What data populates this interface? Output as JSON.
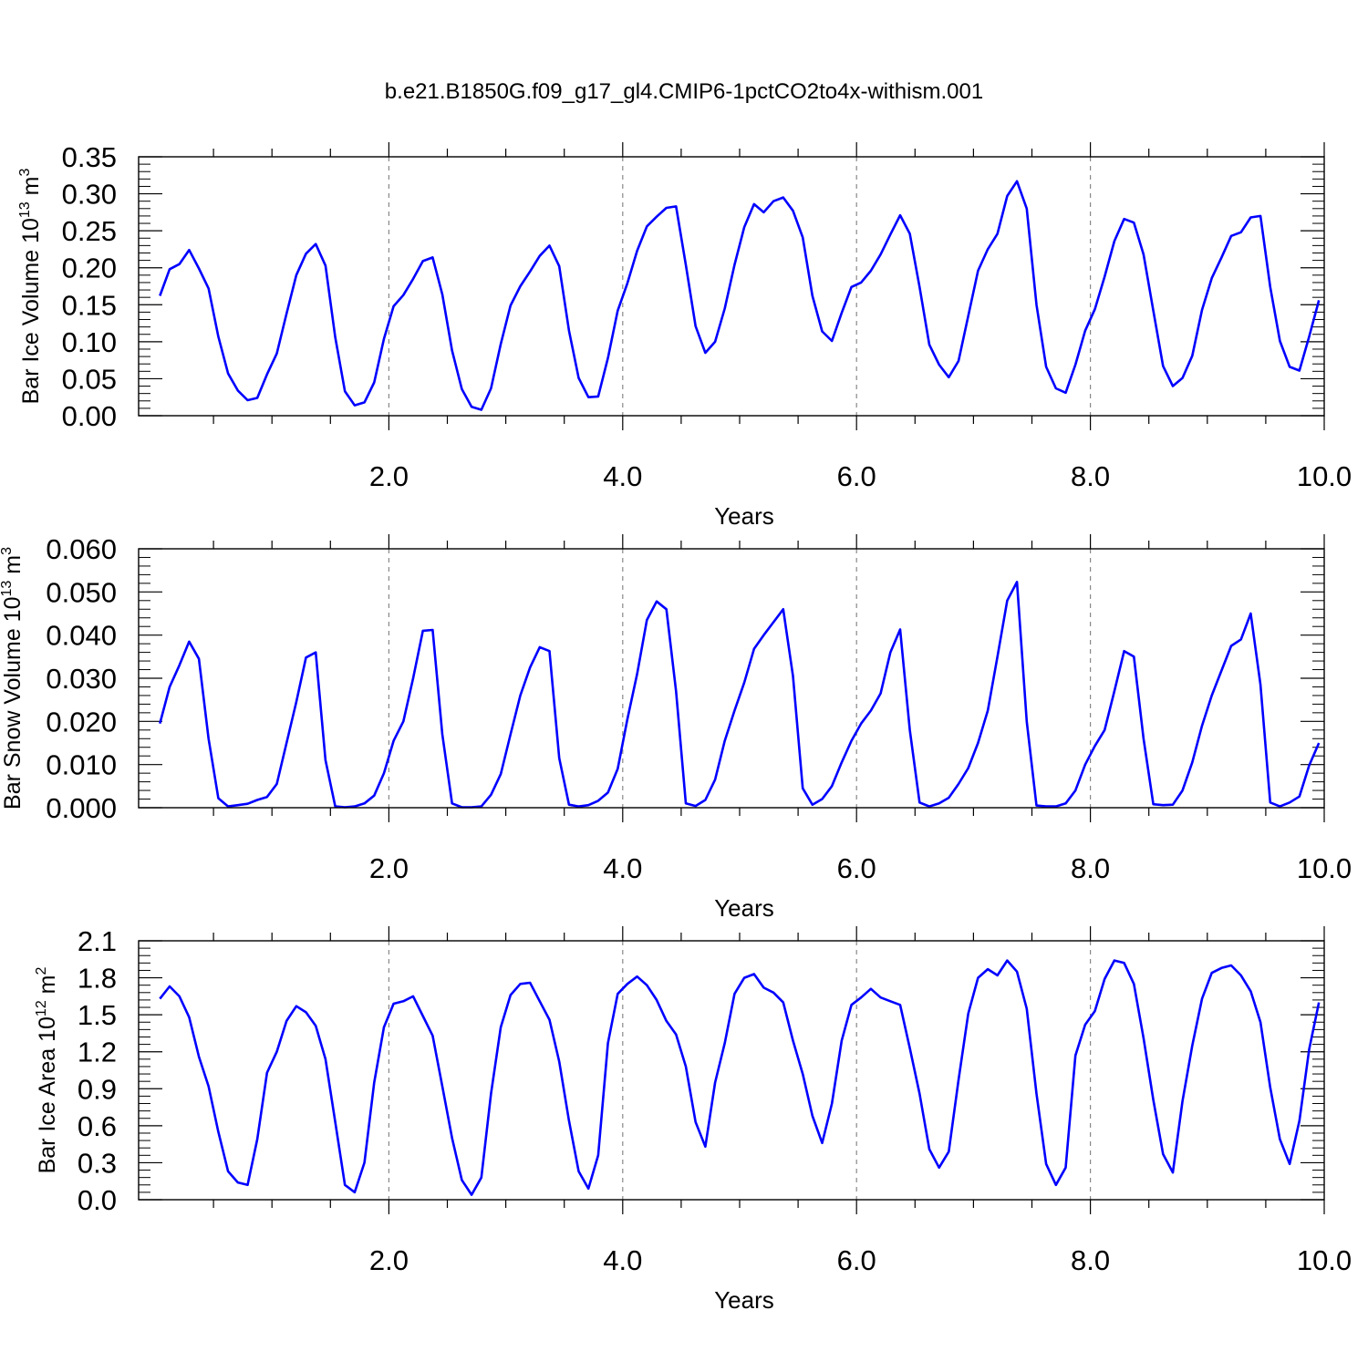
{
  "title": "b.e21.B1850G.f09_g17_gl4.CMIP6-1pctCO2to4x-withism.001",
  "line_color": "#0000ff",
  "grid_color": "#888888",
  "chart_data": [
    {
      "type": "line",
      "title": "b.e21.B1850G.f09_g17_gl4.CMIP6-1pctCO2to4x-withism.001",
      "xlabel": "Years",
      "ylabel": "Bar Ice Volume 10",
      "ylabel_exp": "13",
      "ylabel_unit": " m",
      "ylabel_unit_exp": "3",
      "xlim": [
        0.0,
        10.0
      ],
      "ylim": [
        0.0,
        0.35
      ],
      "x_ticks": [
        2.0,
        4.0,
        6.0,
        8.0,
        10.0
      ],
      "x_tick_labels": [
        "2.0",
        "4.0",
        "6.0",
        "8.0",
        "10.0"
      ],
      "y_ticks": [
        0.0,
        0.05,
        0.1,
        0.15,
        0.2,
        0.25,
        0.3,
        0.35
      ],
      "y_tick_labels": [
        "0.00",
        "0.05",
        "0.10",
        "0.15",
        "0.20",
        "0.25",
        "0.30",
        "0.35"
      ],
      "grid": "dashed vertical at x ticks",
      "x_start": 0.0417,
      "x_step": 0.0833,
      "values": [
        0.162,
        0.198,
        0.205,
        0.224,
        0.199,
        0.172,
        0.107,
        0.057,
        0.034,
        0.021,
        0.024,
        0.056,
        0.084,
        0.138,
        0.19,
        0.219,
        0.232,
        0.203,
        0.106,
        0.033,
        0.014,
        0.018,
        0.045,
        0.104,
        0.148,
        0.163,
        0.185,
        0.209,
        0.214,
        0.164,
        0.088,
        0.036,
        0.012,
        0.008,
        0.037,
        0.097,
        0.149,
        0.175,
        0.195,
        0.216,
        0.23,
        0.202,
        0.115,
        0.051,
        0.025,
        0.026,
        0.078,
        0.142,
        0.179,
        0.223,
        0.256,
        0.269,
        0.281,
        0.283,
        0.204,
        0.121,
        0.085,
        0.1,
        0.145,
        0.204,
        0.255,
        0.286,
        0.275,
        0.29,
        0.295,
        0.277,
        0.241,
        0.162,
        0.114,
        0.101,
        0.139,
        0.174,
        0.18,
        0.196,
        0.218,
        0.245,
        0.271,
        0.246,
        0.174,
        0.096,
        0.069,
        0.052,
        0.074,
        0.135,
        0.196,
        0.225,
        0.246,
        0.297,
        0.317,
        0.28,
        0.15,
        0.066,
        0.037,
        0.031,
        0.069,
        0.115,
        0.144,
        0.188,
        0.236,
        0.266,
        0.261,
        0.218,
        0.142,
        0.067,
        0.04,
        0.051,
        0.081,
        0.143,
        0.186,
        0.214,
        0.243,
        0.248,
        0.268,
        0.27,
        0.174,
        0.101,
        0.066,
        0.061,
        0.107,
        0.156
      ]
    },
    {
      "type": "line",
      "xlabel": "Years",
      "ylabel": "Bar Snow Volume 10",
      "ylabel_exp": "13",
      "ylabel_unit": " m",
      "ylabel_unit_exp": "3",
      "xlim": [
        0.0,
        10.0
      ],
      "ylim": [
        0.0,
        0.06
      ],
      "x_ticks": [
        2.0,
        4.0,
        6.0,
        8.0,
        10.0
      ],
      "x_tick_labels": [
        "2.0",
        "4.0",
        "6.0",
        "8.0",
        "10.0"
      ],
      "y_ticks": [
        0.0,
        0.01,
        0.02,
        0.03,
        0.04,
        0.05,
        0.06
      ],
      "y_tick_labels": [
        "0.000",
        "0.010",
        "0.020",
        "0.030",
        "0.040",
        "0.050",
        "0.060"
      ],
      "grid": "dashed vertical at x ticks",
      "x_start": 0.0417,
      "x_step": 0.0833,
      "values": [
        0.0195,
        0.028,
        0.033,
        0.0385,
        0.0345,
        0.016,
        0.0022,
        0.0003,
        0.0006,
        0.0009,
        0.0018,
        0.0025,
        0.0055,
        0.015,
        0.0245,
        0.0348,
        0.036,
        0.011,
        0.0003,
        0.0001,
        0.0003,
        0.001,
        0.0028,
        0.008,
        0.0155,
        0.02,
        0.03,
        0.041,
        0.0412,
        0.017,
        0.001,
        0.0001,
        0.0001,
        0.0003,
        0.003,
        0.0078,
        0.017,
        0.026,
        0.0325,
        0.0372,
        0.0363,
        0.0115,
        0.0007,
        0.0003,
        0.0006,
        0.0016,
        0.0035,
        0.009,
        0.0205,
        0.031,
        0.0435,
        0.0478,
        0.046,
        0.027,
        0.001,
        0.0004,
        0.0018,
        0.0065,
        0.0155,
        0.0225,
        0.029,
        0.0368,
        0.04,
        0.043,
        0.046,
        0.0305,
        0.0045,
        0.0007,
        0.002,
        0.005,
        0.0105,
        0.0155,
        0.0195,
        0.0225,
        0.0265,
        0.036,
        0.0413,
        0.018,
        0.0012,
        0.0003,
        0.001,
        0.0023,
        0.0055,
        0.0092,
        0.015,
        0.0225,
        0.035,
        0.048,
        0.0523,
        0.02,
        0.0005,
        0.0003,
        0.0003,
        0.001,
        0.004,
        0.01,
        0.0143,
        0.018,
        0.027,
        0.0363,
        0.035,
        0.016,
        0.0008,
        0.0006,
        0.0007,
        0.004,
        0.0105,
        0.019,
        0.026,
        0.0318,
        0.0375,
        0.039,
        0.045,
        0.0285,
        0.0012,
        0.0003,
        0.0012,
        0.0026,
        0.0098,
        0.015
      ]
    },
    {
      "type": "line",
      "xlabel": "Years",
      "ylabel": "Bar Ice Area 10",
      "ylabel_exp": "12",
      "ylabel_unit": " m",
      "ylabel_unit_exp": "2",
      "xlim": [
        0.0,
        10.0
      ],
      "ylim": [
        0.0,
        2.1
      ],
      "x_ticks": [
        2.0,
        4.0,
        6.0,
        8.0,
        10.0
      ],
      "x_tick_labels": [
        "2.0",
        "4.0",
        "6.0",
        "8.0",
        "10.0"
      ],
      "y_ticks": [
        0.0,
        0.3,
        0.6,
        0.9,
        1.2,
        1.5,
        1.8,
        2.1
      ],
      "y_tick_labels": [
        "0.0",
        "0.3",
        "0.6",
        "0.9",
        "1.2",
        "1.5",
        "1.8",
        "2.1"
      ],
      "grid": "dashed vertical at x ticks",
      "x_start": 0.0417,
      "x_step": 0.0833,
      "values": [
        1.63,
        1.73,
        1.65,
        1.48,
        1.16,
        0.92,
        0.55,
        0.23,
        0.14,
        0.12,
        0.49,
        1.03,
        1.2,
        1.45,
        1.57,
        1.52,
        1.41,
        1.14,
        0.63,
        0.12,
        0.06,
        0.3,
        0.95,
        1.4,
        1.59,
        1.61,
        1.65,
        1.49,
        1.33,
        0.92,
        0.5,
        0.16,
        0.04,
        0.18,
        0.86,
        1.4,
        1.66,
        1.75,
        1.76,
        1.61,
        1.46,
        1.12,
        0.64,
        0.23,
        0.09,
        0.36,
        1.27,
        1.67,
        1.75,
        1.81,
        1.74,
        1.62,
        1.45,
        1.34,
        1.08,
        0.63,
        0.43,
        0.95,
        1.27,
        1.67,
        1.8,
        1.83,
        1.72,
        1.68,
        1.6,
        1.29,
        1.02,
        0.68,
        0.46,
        0.78,
        1.29,
        1.58,
        1.64,
        1.71,
        1.64,
        1.61,
        1.58,
        1.23,
        0.86,
        0.41,
        0.26,
        0.39,
        0.97,
        1.51,
        1.8,
        1.87,
        1.82,
        1.94,
        1.85,
        1.55,
        0.86,
        0.29,
        0.12,
        0.26,
        1.17,
        1.42,
        1.53,
        1.79,
        1.94,
        1.92,
        1.75,
        1.31,
        0.81,
        0.37,
        0.22,
        0.8,
        1.25,
        1.63,
        1.84,
        1.88,
        1.9,
        1.82,
        1.69,
        1.44,
        0.91,
        0.49,
        0.29,
        0.64,
        1.22,
        1.6
      ]
    }
  ]
}
